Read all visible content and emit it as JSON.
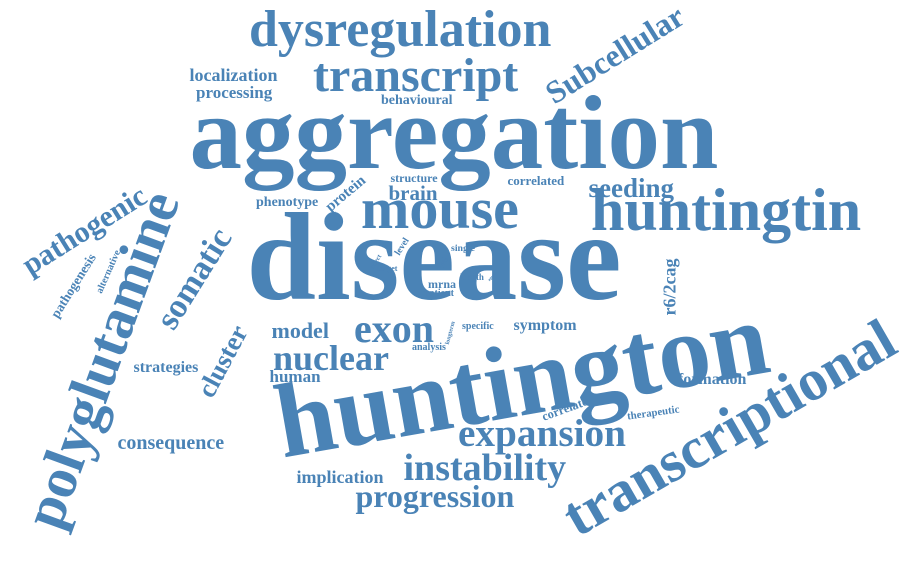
{
  "cloud": {
    "color": "#4a83b6",
    "words": [
      {
        "id": "huntington",
        "text": "huntington"
      },
      {
        "id": "disease",
        "text": "disease"
      },
      {
        "id": "aggregation",
        "text": "aggregation"
      },
      {
        "id": "mouse",
        "text": "mouse"
      },
      {
        "id": "huntingtin",
        "text": "huntingtin"
      },
      {
        "id": "transcriptional",
        "text": "transcriptional"
      },
      {
        "id": "polyglutamine",
        "text": "polyglutamine"
      },
      {
        "id": "dysregulation",
        "text": "dysregulation"
      },
      {
        "id": "transcript",
        "text": "transcript"
      },
      {
        "id": "subcellular",
        "text": "Subcellular"
      },
      {
        "id": "expansion",
        "text": "expansion"
      },
      {
        "id": "instability",
        "text": "instability"
      },
      {
        "id": "progression",
        "text": "progression"
      },
      {
        "id": "somatic",
        "text": "somatic"
      },
      {
        "id": "pathogenic",
        "text": "pathogenic"
      },
      {
        "id": "exon",
        "text": "exon"
      },
      {
        "id": "nuclear",
        "text": "nuclear"
      },
      {
        "id": "cluster",
        "text": "cluster"
      },
      {
        "id": "model",
        "text": "model"
      },
      {
        "id": "consequence",
        "text": "consequence"
      },
      {
        "id": "seeding",
        "text": "seeding"
      },
      {
        "id": "protein",
        "text": "protein"
      },
      {
        "id": "brain",
        "text": "brain"
      },
      {
        "id": "localization",
        "text": "localization"
      },
      {
        "id": "processing",
        "text": "processing"
      },
      {
        "id": "behavioural",
        "text": "behavioural"
      },
      {
        "id": "phenotype",
        "text": "phenotype"
      },
      {
        "id": "r6-2cag",
        "text": "r6/2cag"
      },
      {
        "id": "therapeutic",
        "text": "therapeutic"
      },
      {
        "id": "formation",
        "text": "formation"
      },
      {
        "id": "symptom",
        "text": "symptom"
      },
      {
        "id": "human",
        "text": "human"
      },
      {
        "id": "strategies",
        "text": "strategies"
      },
      {
        "id": "implication",
        "text": "implication"
      },
      {
        "id": "correlate",
        "text": "correlate"
      },
      {
        "id": "alternative",
        "text": "alternative"
      },
      {
        "id": "pathogenesis",
        "text": "pathogenesis"
      },
      {
        "id": "correlated",
        "text": "correlated"
      },
      {
        "id": "structure",
        "text": "structure"
      },
      {
        "id": "mrna",
        "text": "mrna"
      },
      {
        "id": "patient",
        "text": "patient"
      },
      {
        "id": "analysis",
        "text": "analysis"
      },
      {
        "id": "specific",
        "text": "specific"
      },
      {
        "id": "length",
        "text": "length"
      },
      {
        "id": "single",
        "text": "single"
      },
      {
        "id": "level",
        "text": "level"
      },
      {
        "id": "effect",
        "text": "effect"
      },
      {
        "id": "target",
        "text": "target"
      },
      {
        "id": "agent",
        "text": "agent"
      },
      {
        "id": "longterm",
        "text": "longterm"
      },
      {
        "id": "caga",
        "text": "cag"
      }
    ]
  }
}
